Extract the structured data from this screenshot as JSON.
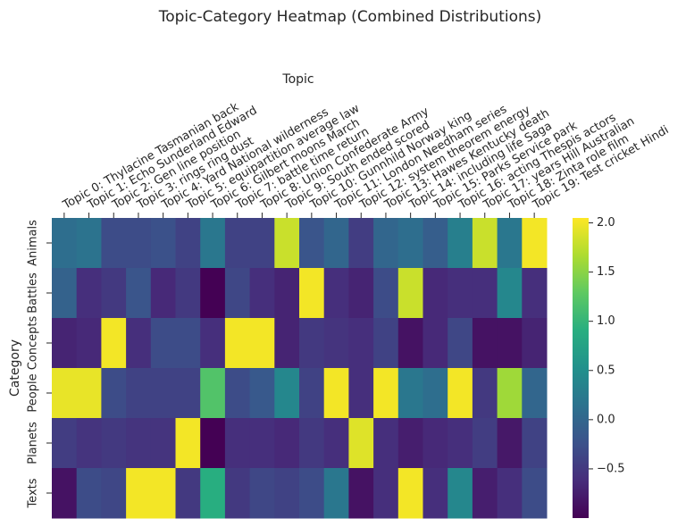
{
  "chart_data": {
    "type": "heatmap",
    "title": "Topic-Category Heatmap (Combined Distributions)",
    "xlabel": "Topic",
    "ylabel": "Category",
    "x_categories": [
      "Topic 0: Thylacine Tasmanian back",
      "Topic 1: Echo Sunderland Edward",
      "Topic 2: Gen line position",
      "Topic 3: rings ring dust",
      "Topic 4: Yard National wilderness",
      "Topic 5: equipartition average law",
      "Topic 6: Gilbert moons March",
      "Topic 7: battle time return",
      "Topic 8: Union Confederate Army",
      "Topic 9: South ended scored",
      "Topic 10: Gunnhild Norway king",
      "Topic 11: London Needham series",
      "Topic 12: system theorem energy",
      "Topic 13: Hawes Kentucky death",
      "Topic 14: including life Saga",
      "Topic 15: Parks Service park",
      "Topic 16: acting Thespis actors",
      "Topic 17: years Hill Australian",
      "Topic 18: Zinta role film",
      "Topic 19: Test cricket Hindi"
    ],
    "y_categories": [
      "Animals",
      "Battles",
      "Concepts",
      "People",
      "Planets",
      "Texts"
    ],
    "values": [
      [
        0.1,
        0.15,
        -0.3,
        -0.3,
        -0.25,
        -0.4,
        0.2,
        -0.4,
        -0.4,
        1.8,
        -0.2,
        0.0,
        -0.45,
        0.0,
        0.1,
        -0.1,
        0.3,
        1.8,
        0.2,
        2.0
      ],
      [
        -0.05,
        -0.6,
        -0.5,
        -0.2,
        -0.65,
        -0.5,
        -1.0,
        -0.35,
        -0.6,
        -0.7,
        2.0,
        -0.6,
        -0.7,
        -0.3,
        1.8,
        -0.65,
        -0.6,
        -0.6,
        0.4,
        -0.6
      ],
      [
        -0.7,
        -0.65,
        2.0,
        -0.6,
        -0.3,
        -0.3,
        -0.6,
        2.0,
        2.0,
        -0.7,
        -0.5,
        -0.55,
        -0.6,
        -0.4,
        -0.85,
        -0.65,
        -0.35,
        -0.85,
        -0.85,
        -0.7
      ],
      [
        1.95,
        1.95,
        -0.3,
        -0.4,
        -0.4,
        -0.4,
        1.2,
        -0.3,
        -0.15,
        0.4,
        -0.4,
        2.0,
        -0.6,
        2.0,
        0.2,
        0.1,
        2.0,
        -0.5,
        1.6,
        0.0
      ],
      [
        -0.45,
        -0.55,
        -0.5,
        -0.55,
        -0.55,
        2.0,
        -1.0,
        -0.6,
        -0.6,
        -0.65,
        -0.5,
        -0.6,
        1.9,
        -0.6,
        -0.75,
        -0.65,
        -0.6,
        -0.45,
        -0.8,
        -0.4
      ],
      [
        -0.85,
        -0.3,
        -0.35,
        2.0,
        2.0,
        -0.5,
        0.9,
        -0.5,
        -0.35,
        -0.4,
        -0.3,
        0.2,
        -0.85,
        -0.6,
        2.0,
        -0.6,
        0.4,
        -0.75,
        -0.6,
        -0.3
      ]
    ],
    "colormap": "viridis",
    "clim": [
      -1.0,
      2.05
    ],
    "cticks": [
      {
        "value": -0.5,
        "label": "−0.5"
      },
      {
        "value": 0,
        "label": "0.0"
      },
      0.5,
      {
        "value": 1,
        "label": "1.0"
      },
      1.5,
      {
        "value": 2,
        "label": "2.0"
      }
    ]
  }
}
